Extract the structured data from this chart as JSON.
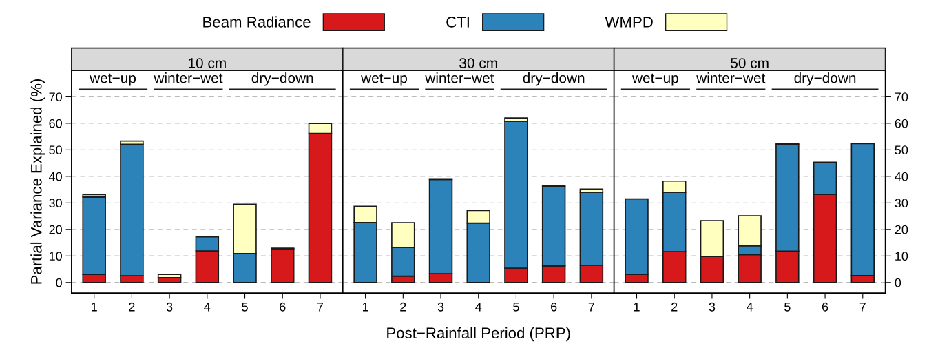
{
  "chart_data": [
    {
      "type": "bar",
      "title": "10 cm",
      "ylabel": "Partial Variance Explained (%)",
      "stacked": true,
      "legend": "top",
      "grid": "y",
      "categories": [
        "1",
        "2",
        "3",
        "4",
        "5",
        "6",
        "7"
      ],
      "annotations": [
        "wet−up",
        "winter−wet",
        "dry−down"
      ],
      "ylim": [
        -4,
        80
      ],
      "yticks": [
        0,
        10,
        20,
        30,
        40,
        50,
        60,
        70
      ],
      "series": [
        {
          "name": "Beam Radiance",
          "color": "#d7191c",
          "values": [
            3.0,
            2.5,
            1.8,
            11.9,
            null,
            12.7,
            56.2
          ]
        },
        {
          "name": "CTI",
          "color": "#2b83ba",
          "values": [
            29.2,
            49.6,
            null,
            5.3,
            10.9,
            0.2,
            null
          ]
        },
        {
          "name": "WMPD",
          "color": "#ffffbf",
          "values": [
            0.9,
            1.2,
            1.2,
            null,
            18.6,
            null,
            3.7
          ]
        }
      ]
    },
    {
      "type": "bar",
      "title": "30 cm",
      "xlabel": "Post−Rainfall Period (PRP)",
      "stacked": true,
      "grid": "y",
      "tick_labels": "x",
      "categories": [
        "1",
        "2",
        "3",
        "4",
        "5",
        "6",
        "7"
      ],
      "annotations": [
        "wet−up",
        "winter−wet",
        "dry−down"
      ],
      "ylim": [
        -4,
        80
      ],
      "yticks": [
        0,
        10,
        20,
        30,
        40,
        50,
        60,
        70
      ],
      "series": [
        {
          "color": "#d7191c",
          "values": [
            null,
            2.4,
            3.3,
            null,
            5.4,
            6.2,
            6.5
          ]
        },
        {
          "color": "#2b83ba",
          "values": [
            22.6,
            10.8,
            35.5,
            22.4,
            55.4,
            29.9,
            27.5
          ]
        },
        {
          "color": "#ffffbf",
          "values": [
            6.1,
            9.3,
            0.3,
            4.7,
            1.2,
            0.3,
            1.2
          ]
        }
      ]
    },
    {
      "type": "bar",
      "title": "50 cm",
      "stacked": true,
      "grid": "y",
      "categories": [
        "1",
        "2",
        "3",
        "4",
        "5",
        "6",
        "7"
      ],
      "annotations": [
        "wet−up",
        "winter−wet",
        "dry−down"
      ],
      "ylim": [
        -4,
        80
      ],
      "yticks": [
        0,
        10,
        20,
        30,
        40,
        50,
        60,
        70
      ],
      "series": [
        {
          "color": "#d7191c",
          "values": [
            3.1,
            11.6,
            9.8,
            10.5,
            11.8,
            33.2,
            2.6
          ]
        },
        {
          "color": "#2b83ba",
          "values": [
            28.4,
            22.4,
            null,
            3.3,
            40.1,
            12.1,
            49.7
          ]
        },
        {
          "color": "#ffffbf",
          "values": [
            null,
            4.2,
            13.5,
            11.3,
            0.3,
            null,
            null
          ]
        }
      ]
    }
  ]
}
